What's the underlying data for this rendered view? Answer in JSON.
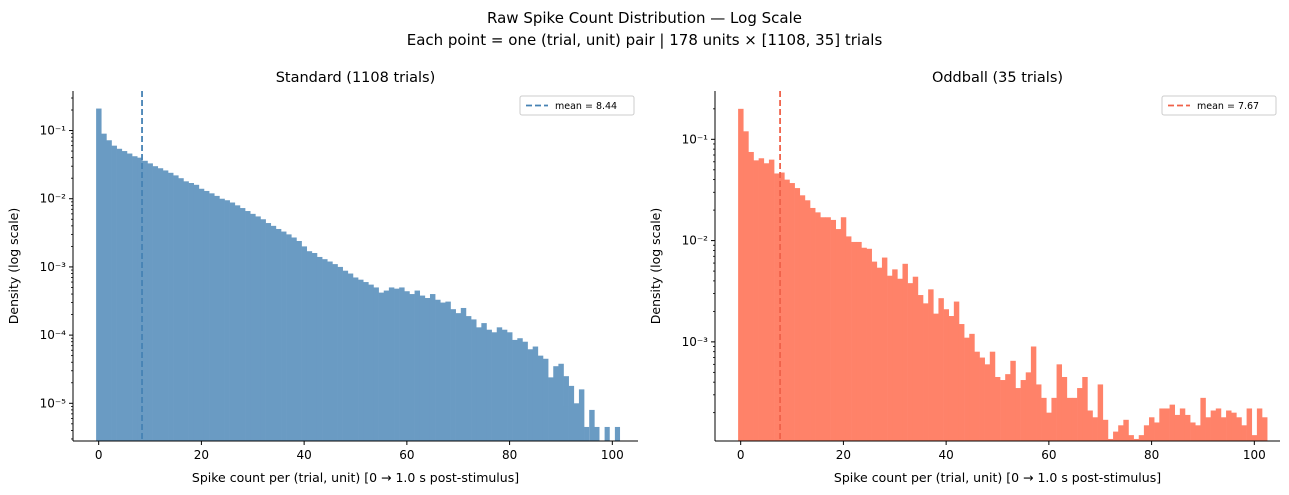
{
  "figure": {
    "title_line1": "Raw Spike Count Distribution — Log Scale",
    "title_line2": "Each point = one (trial, unit) pair  |  178 units × [1108, 35] trials"
  },
  "chart_data": [
    {
      "type": "bar",
      "title": "Standard (1108 trials)",
      "xlabel": "Spike count per (trial, unit)  [0 → 1.0 s post-stimulus]",
      "ylabel": "Density (log scale)",
      "color": "#6a9bc3",
      "mean_color": "#4682b4",
      "yscale": "log",
      "xlim": [
        -5,
        105
      ],
      "ylim": [
        2.8e-06,
        0.38
      ],
      "xticks": [
        0,
        20,
        40,
        60,
        80,
        100
      ],
      "xtick_labels": [
        "0",
        "20",
        "40",
        "60",
        "80",
        "100"
      ],
      "yticks": [
        1e-05,
        0.0001,
        0.001,
        0.01,
        0.1
      ],
      "ytick_labels": [
        "10⁻⁵",
        "10⁻⁴",
        "10⁻³",
        "10⁻²",
        "10⁻¹"
      ],
      "bin_start": -0.5,
      "bin_width": 1,
      "values": [
        0.21,
        0.09,
        0.072,
        0.06,
        0.054,
        0.05,
        0.046,
        0.042,
        0.04,
        0.036,
        0.033,
        0.03,
        0.028,
        0.026,
        0.024,
        0.022,
        0.02,
        0.018,
        0.017,
        0.016,
        0.014,
        0.013,
        0.012,
        0.011,
        0.01,
        0.0095,
        0.0088,
        0.008,
        0.0073,
        0.0066,
        0.006,
        0.0055,
        0.005,
        0.0044,
        0.004,
        0.0036,
        0.0033,
        0.003,
        0.0027,
        0.0024,
        0.002,
        0.0017,
        0.0016,
        0.0014,
        0.0013,
        0.0012,
        0.0011,
        0.001,
        0.00088,
        0.0008,
        0.0007,
        0.00065,
        0.0006,
        0.00055,
        0.0005,
        0.00042,
        0.00045,
        0.0005,
        0.00048,
        0.0005,
        0.00044,
        0.0004,
        0.00045,
        0.00038,
        0.00035,
        0.0004,
        0.00033,
        0.0003,
        0.00031,
        0.00024,
        0.00021,
        0.00025,
        0.00019,
        0.00017,
        0.00013,
        0.00015,
        0.00012,
        0.00011,
        0.00013,
        0.00012,
        0.00011,
        8.5e-05,
        9e-05,
        8e-05,
        6.2e-05,
        6.8e-05,
        5e-05,
        4.5e-05,
        2.4e-05,
        3.5e-05,
        3.8e-05,
        2.5e-05,
        1.8e-05,
        1e-05,
        1.6e-05,
        0.0,
        8e-06,
        0.0,
        0.0,
        0.0,
        0.0,
        0.0
      ],
      "sparse_bins": [
        {
          "x": 91,
          "y": 9e-06
        },
        {
          "x": 95,
          "y": 4.5e-06
        },
        {
          "x": 97,
          "y": 4.5e-06
        },
        {
          "x": 99,
          "y": 4.5e-06
        },
        {
          "x": 101,
          "y": 4.5e-06
        }
      ],
      "mean_value": 8.44,
      "legend_label": "mean = 8.44",
      "legend_position": "upper right"
    },
    {
      "type": "bar",
      "title": "Oddball  (35 trials)",
      "xlabel": "Spike count per (trial, unit)  [0 → 1.0 s post-stimulus]",
      "ylabel": "Density (log scale)",
      "color": "#ff8269",
      "mean_color": "#f0624a",
      "yscale": "log",
      "xlim": [
        -5,
        105
      ],
      "ylim": [
        0.000105,
        0.3
      ],
      "xticks": [
        0,
        20,
        40,
        60,
        80,
        100
      ],
      "xtick_labels": [
        "0",
        "20",
        "40",
        "60",
        "80",
        "100"
      ],
      "yticks": [
        0.001,
        0.01,
        0.1
      ],
      "ytick_labels": [
        "10⁻³",
        "10⁻²",
        "10⁻¹"
      ],
      "bin_start": -0.5,
      "bin_width": 1,
      "values": [
        0.2,
        0.12,
        0.075,
        0.062,
        0.065,
        0.058,
        0.063,
        0.046,
        0.047,
        0.04,
        0.037,
        0.033,
        0.028,
        0.025,
        0.021,
        0.019,
        0.017,
        0.017,
        0.016,
        0.013,
        0.017,
        0.011,
        0.0097,
        0.0097,
        0.0085,
        0.0083,
        0.0062,
        0.0054,
        0.0068,
        0.0045,
        0.0052,
        0.0042,
        0.0059,
        0.0038,
        0.0044,
        0.0029,
        0.0024,
        0.0033,
        0.0019,
        0.0027,
        0.0021,
        0.0018,
        0.0025,
        0.0015,
        0.0011,
        0.0012,
        0.0008,
        0.0007,
        0.0006,
        0.0008,
        0.00045,
        0.00042,
        0.00048,
        0.00065,
        0.00035,
        0.00042,
        0.0005,
        0.0009,
        0.00038,
        0.00028,
        0.0002,
        0.00028,
        0.0006,
        0.00045,
        0.00028,
        0.00028,
        0.00035,
        0.00045,
        0.00021,
        0.00018,
        0.00038,
        0.00017,
        0.00011,
        0.00013,
        0.00015,
        0.00017,
        0.00012,
        0.00011,
        0.00012,
        0.00015,
        0.00018,
        0.00016,
        0.00022,
        0.00022,
        0.00024,
        0.00019,
        0.00022,
        0.00019,
        0.00016,
        0.00015,
        0.00028,
        0.00018,
        0.00021,
        0.00022,
        0.00018,
        0.00021,
        0.0002,
        0.00018,
        0.00015,
        0.00022,
        0.00012,
        0.00022,
        0.00018
      ],
      "mean_value": 7.67,
      "legend_label": "mean = 7.67",
      "legend_position": "upper right"
    }
  ]
}
